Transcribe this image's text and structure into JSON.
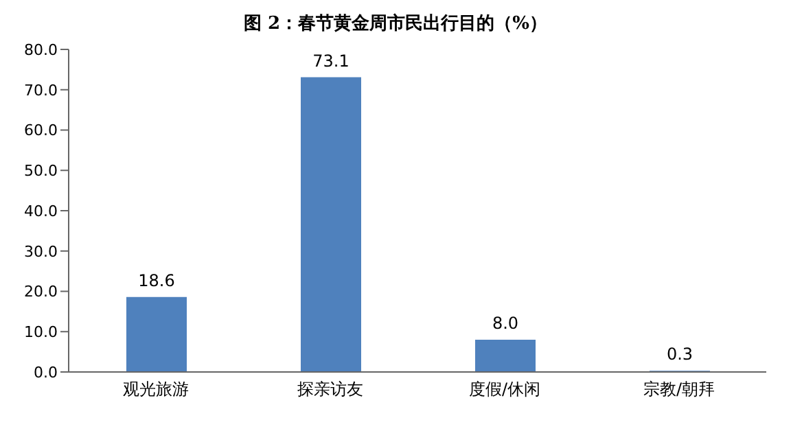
{
  "chart_data": {
    "type": "bar",
    "title": "图 2：春节黄金周市民出行目的（%）",
    "categories": [
      "观光旅游",
      "探亲访友",
      "度假/休闲",
      "宗教/朝拜"
    ],
    "values": [
      18.6,
      73.1,
      8.0,
      0.3
    ],
    "value_labels": [
      "18.6",
      "73.1",
      "8.0",
      "0.3"
    ],
    "color": "#4f81bd",
    "ylim": [
      0,
      80
    ],
    "yticks": [
      {
        "value": 0,
        "label": "0.0"
      },
      {
        "value": 10,
        "label": "10.0"
      },
      {
        "value": 20,
        "label": "20.0"
      },
      {
        "value": 30,
        "label": "30.0"
      },
      {
        "value": 40,
        "label": "40.0"
      },
      {
        "value": 50,
        "label": "50.0"
      },
      {
        "value": 60,
        "label": "60.0"
      },
      {
        "value": 70,
        "label": "70.0"
      },
      {
        "value": 80,
        "label": "80.0"
      }
    ],
    "grid": false,
    "legend": false
  }
}
